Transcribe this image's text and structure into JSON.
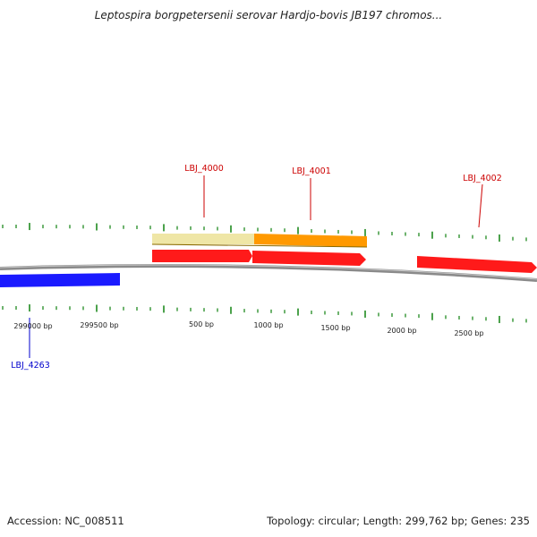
{
  "title": "Leptospira borgpetersenii serovar Hardjo-bovis JB197 chromos...",
  "footer": {
    "accession": "Accession: NC_008511",
    "summary": "Topology: circular; Length: 299,762 bp; Genes: 235"
  },
  "colors": {
    "backbone": "#8a8a8a",
    "tick": "#1f8a1f",
    "forward_gene": "#ff1a1a",
    "reverse_gene": "#1a1aff",
    "cds_light": "#efe6a6",
    "cds_orange": "#ff9900",
    "label_forward": "#cc0000",
    "label_reverse": "#0000cc"
  },
  "scale_labels": [
    "299000 bp",
    "299500 bp",
    "500 bp",
    "1000 bp",
    "1500 bp",
    "2000 bp",
    "2500 bp"
  ],
  "genes": [
    {
      "label": "LBJ_4000",
      "strand": "+"
    },
    {
      "label": "LBJ_4001",
      "strand": "+"
    },
    {
      "label": "LBJ_4002",
      "strand": "+"
    },
    {
      "label": "LBJ_4263",
      "strand": "-"
    }
  ]
}
